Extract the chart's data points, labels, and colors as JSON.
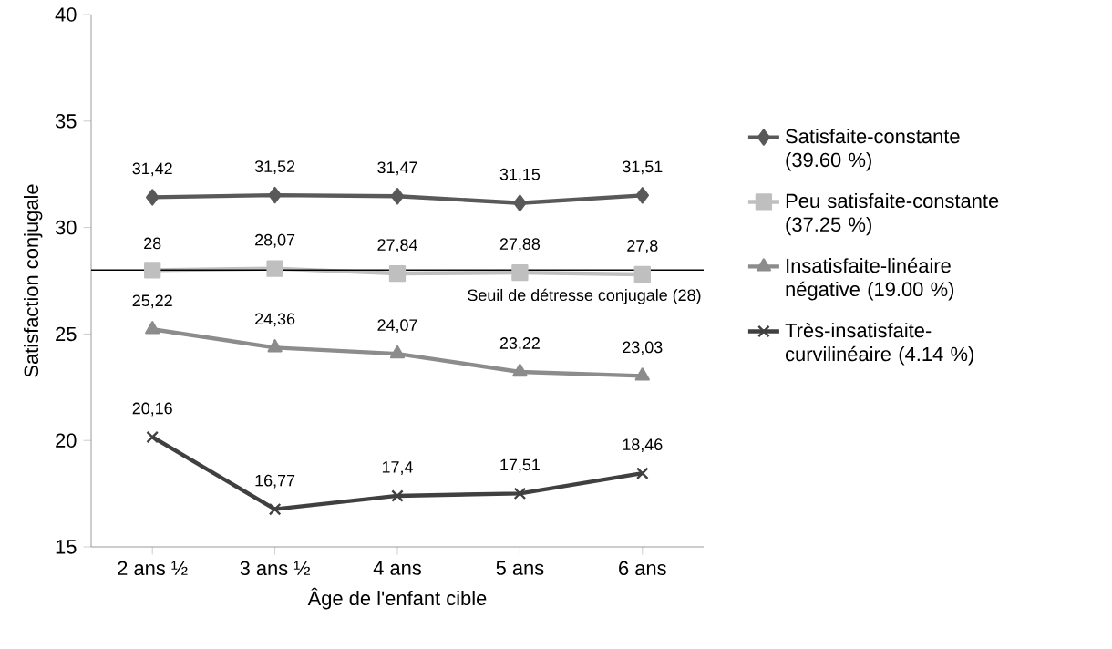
{
  "chart_data": {
    "type": "line",
    "xlabel": "Âge de l'enfant cible",
    "ylabel": "Satisfaction conjugale",
    "categories": [
      "2 ans ½",
      "3 ans ½",
      "4 ans",
      "5 ans",
      "6 ans"
    ],
    "ylim": [
      15,
      40
    ],
    "yticks": [
      15,
      20,
      25,
      30,
      35,
      40
    ],
    "legend": "right",
    "series": [
      {
        "name": "Satisfaite-constante (39.60 %)",
        "color": "#595959",
        "marker": "diamond",
        "values": [
          31.42,
          31.52,
          31.47,
          31.15,
          31.51
        ],
        "value_labels": [
          "31,42",
          "31,52",
          "31,47",
          "31,15",
          "31,51"
        ]
      },
      {
        "name": "Peu satisfaite-constante (37.25 %)",
        "color": "#bfbfbf",
        "marker": "square",
        "values": [
          28,
          28.07,
          27.84,
          27.88,
          27.8
        ],
        "value_labels": [
          "28",
          "28,07",
          "27,84",
          "27,88",
          "27,8"
        ]
      },
      {
        "name": "Insatisfaite-linéaire négative (19.00 %)",
        "color": "#8c8c8c",
        "marker": "triangle",
        "values": [
          25.22,
          24.36,
          24.07,
          23.22,
          23.03
        ],
        "value_labels": [
          "25,22",
          "24,36",
          "24,07",
          "23,22",
          "23,03"
        ]
      },
      {
        "name": "Très-insatisfaite-curvilinéaire (4.14 %)",
        "color": "#404040",
        "marker": "cross",
        "values": [
          20.16,
          16.77,
          17.4,
          17.51,
          18.46
        ],
        "value_labels": [
          "20,16",
          "16,77",
          "17,4",
          "17,51",
          "18,46"
        ]
      }
    ],
    "ref_lines": [
      {
        "axis": "y",
        "value": 28,
        "label": "Seuil de détresse conjugale (28)",
        "color": "#000000"
      }
    ]
  }
}
